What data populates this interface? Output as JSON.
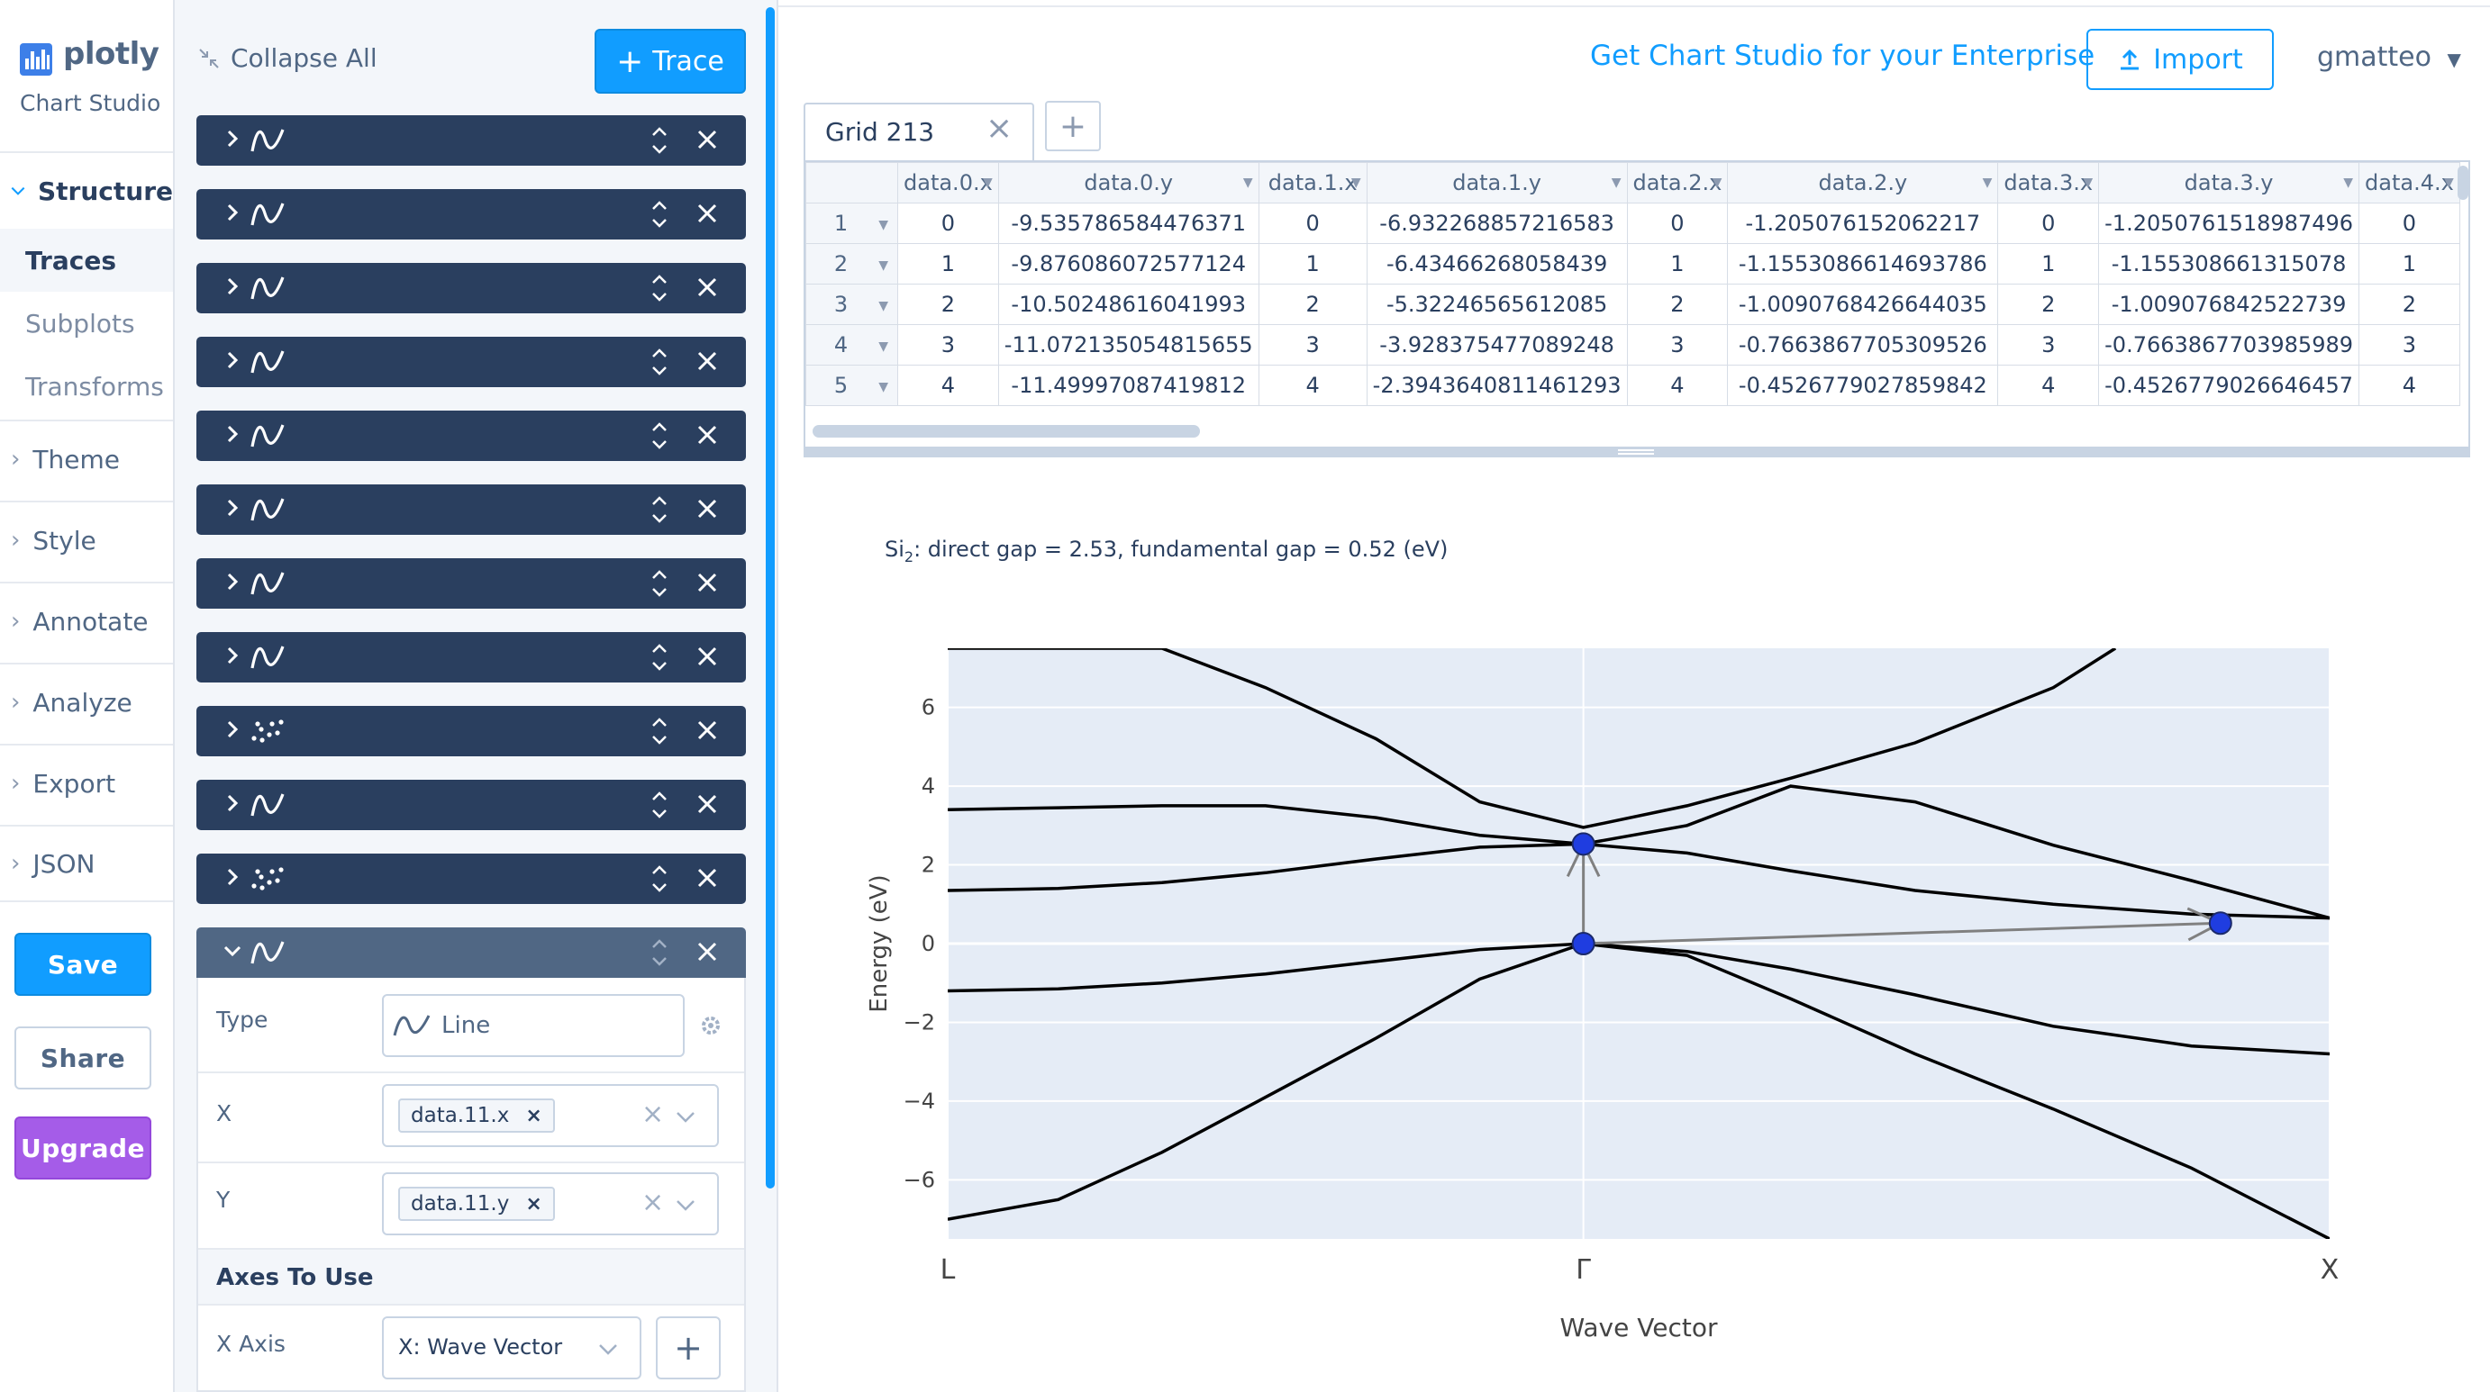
{
  "app": {
    "logo_text": "plotly",
    "logo_subtitle": "Chart Studio",
    "enterprise_link": "Get Chart Studio for your Enterprise",
    "import_label": "Import",
    "user_name": "gmatteo"
  },
  "nav": {
    "structure_label": "Structure",
    "structure_items": [
      "Traces",
      "Subplots",
      "Transforms"
    ],
    "sections": [
      "Theme",
      "Style",
      "Annotate",
      "Analyze",
      "Export",
      "JSON"
    ],
    "save_label": "Save",
    "share_label": "Share",
    "upgrade_label": "Upgrade"
  },
  "trace_panel": {
    "collapse_all_label": "Collapse All",
    "add_trace_label": "Trace",
    "traces": [
      {
        "icon": "line-icon"
      },
      {
        "icon": "line-icon"
      },
      {
        "icon": "line-icon"
      },
      {
        "icon": "line-icon"
      },
      {
        "icon": "line-icon"
      },
      {
        "icon": "line-icon"
      },
      {
        "icon": "line-icon"
      },
      {
        "icon": "line-icon"
      },
      {
        "icon": "scatter-icon"
      },
      {
        "icon": "line-icon"
      },
      {
        "icon": "scatter-icon"
      },
      {
        "icon": "line-icon",
        "expanded": true
      }
    ],
    "expanded": {
      "type_label": "Type",
      "type_value": "Line",
      "x_label": "X",
      "x_value": "data.11.x",
      "y_label": "Y",
      "y_value": "data.11.y",
      "axes_heading": "Axes To Use",
      "x_axis_label": "X Axis",
      "x_axis_value": "X: Wave Vector"
    }
  },
  "grid": {
    "tab_name": "Grid 213",
    "columns": [
      "data.0.x",
      "data.0.y",
      "data.1.x",
      "data.1.y",
      "data.2.x",
      "data.2.y",
      "data.3.x",
      "data.3.y",
      "data.4.x"
    ],
    "rows": [
      [
        "1",
        "0",
        "-9.535786584476371",
        "0",
        "-6.932268857216583",
        "0",
        "-1.205076152062217",
        "0",
        "-1.2050761518987496",
        "0"
      ],
      [
        "2",
        "1",
        "-9.876086072577124",
        "1",
        "-6.43466268058439",
        "1",
        "-1.1553086614693786",
        "1",
        "-1.155308661315078",
        "1"
      ],
      [
        "3",
        "2",
        "-10.50248616041993",
        "2",
        "-5.32246565612085",
        "2",
        "-1.0090768426644035",
        "2",
        "-1.009076842522739",
        "2"
      ],
      [
        "4",
        "3",
        "-11.072135054815655",
        "3",
        "-3.928375477089248",
        "3",
        "-0.7663867705309526",
        "3",
        "-0.7663867703985989",
        "3"
      ],
      [
        "5",
        "4",
        "-11.49997087419812",
        "4",
        "-2.3943640811461293",
        "4",
        "-0.4526779027859842",
        "4",
        "-0.4526779026646457",
        "4"
      ]
    ]
  },
  "chart_data": {
    "type": "line",
    "title_prefix": "Si",
    "title_subscript": "2",
    "title_rest": ": direct gap = 2.53, fundamental gap = 0.52 (eV)",
    "xlabel": "Wave Vector",
    "ylabel": "Energy (eV)",
    "xlim": [
      0,
      1
    ],
    "ylim": [
      -7.5,
      7.5
    ],
    "yticks": [
      6,
      4,
      2,
      0,
      -2,
      -4,
      -6
    ],
    "ytick_labels": [
      "6",
      "4",
      "2",
      "0",
      "−2",
      "−4",
      "−6"
    ],
    "xticks": [
      0,
      0.46,
      1
    ],
    "xtick_labels": [
      "L",
      "Γ",
      "X"
    ],
    "plot_bg": "#e5ecf6",
    "line_color": "#000000",
    "marker_color": "#1f3de0",
    "arrow_color": "#808080",
    "series": [
      {
        "x": [
          0,
          0.08,
          0.155,
          0.23,
          0.31,
          0.385,
          0.46,
          0.535,
          0.61,
          0.7,
          0.8,
          0.9,
          1.0
        ],
        "y": [
          -7.0,
          -6.5,
          -5.3,
          -3.9,
          -2.4,
          -0.9,
          0.0,
          -0.3,
          -1.4,
          -2.8,
          -4.2,
          -5.7,
          -7.5
        ]
      },
      {
        "x": [
          0,
          0.08,
          0.155,
          0.23,
          0.31,
          0.385,
          0.46,
          0.535,
          0.61,
          0.7,
          0.8,
          0.9,
          1.0
        ],
        "y": [
          -1.2,
          -1.15,
          -1.0,
          -0.77,
          -0.45,
          -0.15,
          0.0,
          -0.2,
          -0.65,
          -1.3,
          -2.1,
          -2.6,
          -2.8
        ]
      },
      {
        "x": [
          0,
          0.08,
          0.155,
          0.23,
          0.31,
          0.385,
          0.46,
          0.535,
          0.61,
          0.7,
          0.8,
          0.9,
          1.0
        ],
        "y": [
          1.35,
          1.4,
          1.55,
          1.8,
          2.15,
          2.45,
          2.53,
          2.3,
          1.85,
          1.35,
          1.0,
          0.75,
          0.65
        ]
      },
      {
        "x": [
          0,
          0.08,
          0.155,
          0.23,
          0.31,
          0.385,
          0.46,
          0.535,
          0.61,
          0.7,
          0.8,
          0.9,
          1.0
        ],
        "y": [
          3.4,
          3.45,
          3.5,
          3.5,
          3.2,
          2.75,
          2.53,
          3.0,
          4.0,
          3.6,
          2.5,
          1.6,
          0.65
        ]
      },
      {
        "x": [
          0,
          0.08,
          0.155,
          0.23,
          0.31,
          0.385,
          0.46,
          0.535,
          0.61,
          0.7,
          0.8,
          0.845
        ],
        "y": [
          7.5,
          7.5,
          7.5,
          6.5,
          5.2,
          3.6,
          2.95,
          3.5,
          4.2,
          5.1,
          6.5,
          7.5
        ]
      }
    ],
    "markers": [
      {
        "x": 0.46,
        "y": 0.0
      },
      {
        "x": 0.46,
        "y": 2.53
      },
      {
        "x": 0.921,
        "y": 0.52
      }
    ],
    "arrows": [
      {
        "from": [
          0.46,
          0.0
        ],
        "to": [
          0.46,
          2.53
        ]
      },
      {
        "from": [
          0.46,
          0.0
        ],
        "to": [
          0.921,
          0.52
        ]
      }
    ]
  }
}
